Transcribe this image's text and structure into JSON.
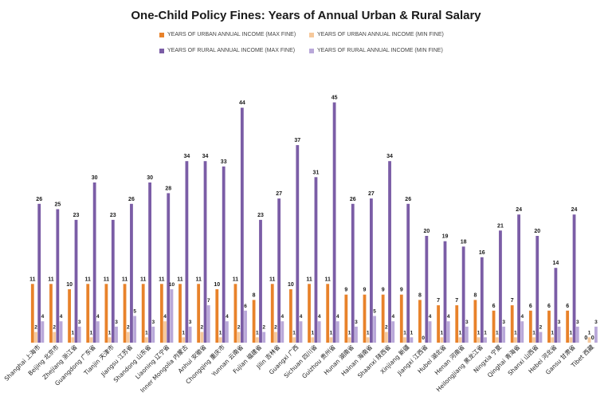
{
  "chart_data": {
    "type": "bar",
    "title": "One-Child Policy Fines:  Years of Annual Urban & Rural Salary",
    "xlabel": "",
    "ylabel": "",
    "ylim": [
      0,
      46
    ],
    "grid": false,
    "legend_position": "top",
    "categories": [
      "Shanghai 上海市",
      "Beijing 北京市",
      "Zhejiang 浙江省",
      "Guangdong 广东省",
      "Tianjin 天津市",
      "Jiangsu 江苏省",
      "Shandong 山东省",
      "Liaoning 辽宁省",
      "Inner Mongolia 内蒙古",
      "Anhui 安徽省",
      "Chongqing 重庆市",
      "Yunnan 云南省",
      "Fujian 福建省",
      "Jilin 吉林省",
      "Guangxi 广西",
      "Sichuan 四川省",
      "Guizhou 贵州省",
      "Hunan 湖南省",
      "Hainan 海南省",
      "Shaanxi 陕西省",
      "Xinjiang 新疆",
      "Jiangxi 江西省",
      "Hubei 湖北省",
      "Henan 河南省",
      "Heilongjiang 黑龙江省",
      "Ningxia 宁夏",
      "Qinghai 青海省",
      "Shanxi 山西省",
      "Hebei 河北省",
      "Gansu 甘肃省",
      "Tibet 西藏"
    ],
    "series": [
      {
        "name": "YEARS OF URBAN ANNUAL  INCOME (MAX FINE)",
        "color": "#e8822a",
        "values": [
          11,
          11,
          10,
          11,
          11,
          11,
          11,
          11,
          11,
          11,
          10,
          11,
          8,
          11,
          10,
          11,
          11,
          9,
          9,
          9,
          9,
          8,
          7,
          7,
          8,
          6,
          7,
          6,
          6,
          6,
          0
        ]
      },
      {
        "name": "YEARS OF URBAN ANNUAL INCOME (MIN FINE)",
        "color": "#f6c89b",
        "values": [
          2,
          2,
          1,
          1,
          1,
          2,
          1,
          4,
          1,
          2,
          1,
          2,
          1,
          2,
          1,
          1,
          1,
          1,
          1,
          2,
          1,
          0,
          1,
          1,
          1,
          1,
          1,
          1,
          1,
          1,
          1
        ]
      },
      {
        "name": "YEARS OF RURAL ANNUAL INCOME (MAX FINE)",
        "color": "#7b5da6",
        "values": [
          26,
          25,
          23,
          30,
          23,
          26,
          30,
          28,
          34,
          34,
          33,
          44,
          23,
          27,
          37,
          31,
          45,
          26,
          27,
          34,
          26,
          20,
          19,
          18,
          16,
          21,
          24,
          20,
          14,
          24,
          0
        ]
      },
      {
        "name": "YEARS OF RURAL ANNUAL INCOME (MIN FINE)",
        "color": "#b9a8d9",
        "values": [
          4,
          4,
          3,
          4,
          3,
          5,
          3,
          10,
          3,
          7,
          4,
          6,
          2,
          4,
          4,
          4,
          4,
          3,
          5,
          4,
          1,
          4,
          4,
          3,
          1,
          3,
          4,
          2,
          3,
          3,
          3
        ]
      }
    ]
  }
}
